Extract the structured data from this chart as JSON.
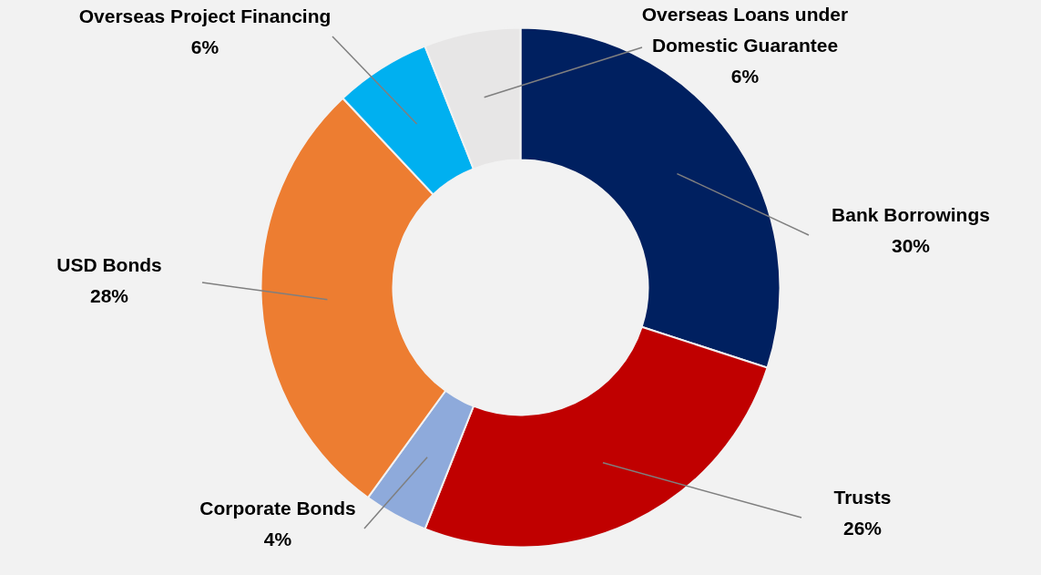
{
  "chart_data": {
    "type": "donut",
    "categories": [
      "Bank Borrowings",
      "Trusts",
      "Corporate Bonds",
      "USD Bonds",
      "Overseas Project Financing",
      "Overseas Loans under Domestic Guarantee"
    ],
    "values": [
      30,
      26,
      4,
      28,
      6,
      6
    ],
    "value_labels": [
      "30%",
      "26%",
      "4%",
      "28%",
      "6%",
      "6%"
    ],
    "colors": [
      "#002060",
      "#c00000",
      "#8eaadb",
      "#ed7d31",
      "#00b0f0",
      "#e7e6e6"
    ]
  }
}
